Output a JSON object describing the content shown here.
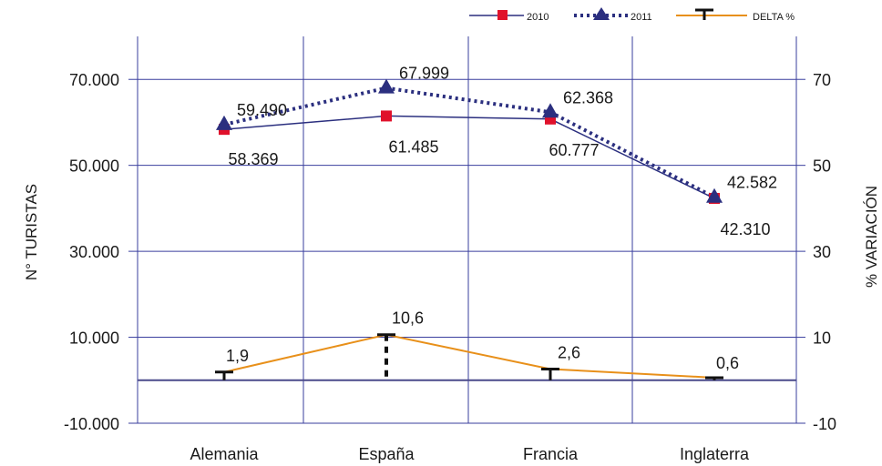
{
  "chart_data": {
    "type": "line",
    "categories": [
      "Alemania",
      "España",
      "Francia",
      "Inglaterra"
    ],
    "ylabel": "N° TURISTAS",
    "ylabel_right": "% VARIACIÓN",
    "ylim": [
      -10000,
      80000
    ],
    "ylim_right": [
      -10,
      80
    ],
    "yticks": [
      -10000,
      10000,
      30000,
      50000,
      70000
    ],
    "yticks_labels": [
      "-10.000",
      "10.000",
      "30.000",
      "50.000",
      "70.000"
    ],
    "yticks_right": [
      -10,
      10,
      30,
      50,
      70
    ],
    "yticks_right_labels": [
      "-10",
      "10",
      "30",
      "50",
      "70"
    ],
    "grid": true,
    "legend_position": "top-right",
    "series": [
      {
        "name": "2010",
        "axis": "left",
        "color": "#2b2f7f",
        "marker": "square",
        "marker_color": "#e0112b",
        "style": "solid",
        "values": [
          58369,
          61485,
          60777,
          42310
        ],
        "labels": [
          "58.369",
          "61.485",
          "60.777",
          "42.310"
        ]
      },
      {
        "name": "2011",
        "axis": "left",
        "color": "#2b2f7f",
        "marker": "triangle",
        "marker_color": "#2b2f7f",
        "style": "dotted",
        "values": [
          59490,
          67999,
          62368,
          42582
        ],
        "labels": [
          "59.490",
          "67.999",
          "62.368",
          "42.582"
        ]
      },
      {
        "name": "DELTA %",
        "axis": "right",
        "color": "#e8901a",
        "marker": "tbar",
        "marker_color": "#111111",
        "style": "solid",
        "values": [
          1.9,
          10.6,
          2.6,
          0.6
        ],
        "labels": [
          "1,9",
          "10,6",
          "2,6",
          "0,6"
        ]
      }
    ],
    "colors": {
      "grid": "#3a3f9e",
      "zero_line": "#4a4a8a",
      "dashed_marker": "#111111"
    }
  }
}
